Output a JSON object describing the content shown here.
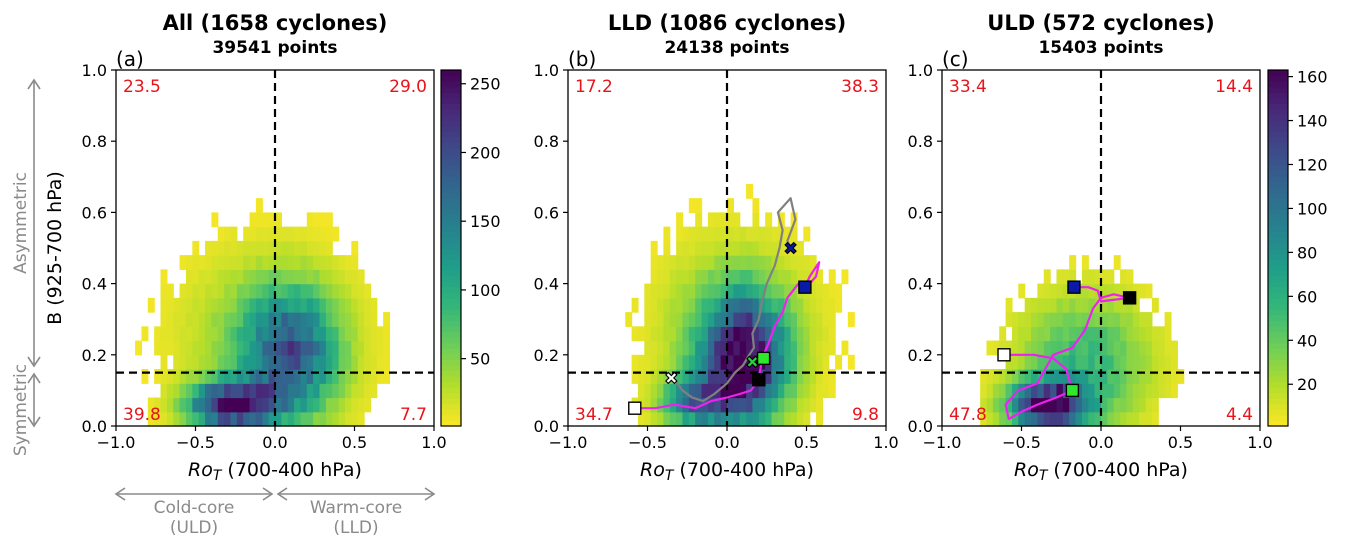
{
  "chart_data": [
    {
      "type": "heatmap",
      "panel_label": "(a)",
      "title": "All (1658 cyclones)",
      "subtitle": "39541 points",
      "xlabel_symbol": "Ro",
      "xlabel_sub": "T",
      "xlabel_rest": " (700-400 hPa)",
      "ylabel": "B (925-700 hPa)",
      "xlim": [
        -1.0,
        1.0
      ],
      "ylim": [
        0.0,
        1.0
      ],
      "xticks": [
        "−1.0",
        "−0.5",
        "0.0",
        "0.5",
        "1.0"
      ],
      "yticks": [
        "0.0",
        "0.2",
        "0.4",
        "0.6",
        "0.8",
        "1.0"
      ],
      "colormap": "viridis_r",
      "colorbar": {
        "ticks": [
          "50",
          "100",
          "150",
          "200",
          "250"
        ],
        "tick_values": [
          50,
          100,
          150,
          200,
          250
        ],
        "range": [
          1,
          260
        ]
      },
      "quadrant_percent": {
        "top_left": "23.5",
        "top_right": "29.0",
        "bottom_left": "39.8",
        "bottom_right": "7.7"
      },
      "reference_lines": {
        "x": 0.0,
        "y": 0.15
      },
      "density_model": {
        "peak": 258,
        "components": [
          {
            "x": -0.27,
            "y": 0.06,
            "sx": 0.18,
            "sy": 0.045,
            "w": 1.0
          },
          {
            "x": 0.1,
            "y": 0.2,
            "sx": 0.2,
            "sy": 0.12,
            "w": 0.62
          },
          {
            "x": -0.05,
            "y": 0.25,
            "sx": 0.35,
            "sy": 0.16,
            "w": 0.2
          }
        ]
      },
      "tracks": []
    },
    {
      "type": "heatmap",
      "panel_label": "(b)",
      "title": "LLD (1086 cyclones)",
      "subtitle": "24138 points",
      "xlabel_symbol": "Ro",
      "xlabel_sub": "T",
      "xlabel_rest": " (700-400 hPa)",
      "ylabel": "",
      "xlim": [
        -1.0,
        1.0
      ],
      "ylim": [
        0.0,
        1.0
      ],
      "xticks": [
        "−1.0",
        "−0.5",
        "0.0",
        "0.5",
        "1.0"
      ],
      "yticks": [
        "0.0",
        "0.2",
        "0.4",
        "0.6",
        "0.8",
        "1.0"
      ],
      "colormap": "viridis_r",
      "colorbar": null,
      "quadrant_percent": {
        "top_left": "17.2",
        "top_right": "38.3",
        "bottom_left": "34.7",
        "bottom_right": "9.8"
      },
      "reference_lines": {
        "x": 0.0,
        "y": 0.15
      },
      "density_model": {
        "peak": 250,
        "components": [
          {
            "x": 0.1,
            "y": 0.18,
            "sx": 0.18,
            "sy": 0.12,
            "w": 1.0
          },
          {
            "x": -0.2,
            "y": 0.07,
            "sx": 0.15,
            "sy": 0.05,
            "w": 0.55
          },
          {
            "x": 0.05,
            "y": 0.28,
            "sx": 0.32,
            "sy": 0.16,
            "w": 0.22
          }
        ]
      },
      "tracks": [
        {
          "name": "gray track",
          "color": "#808080",
          "points": [
            [
              -0.33,
              0.13
            ],
            [
              -0.28,
              0.1
            ],
            [
              -0.22,
              0.08
            ],
            [
              -0.15,
              0.07
            ],
            [
              -0.08,
              0.09
            ],
            [
              0.0,
              0.12
            ],
            [
              0.05,
              0.15
            ],
            [
              0.1,
              0.17
            ],
            [
              0.14,
              0.2
            ],
            [
              0.17,
              0.22
            ],
            [
              0.16,
              0.26
            ],
            [
              0.2,
              0.3
            ],
            [
              0.22,
              0.35
            ],
            [
              0.25,
              0.4
            ],
            [
              0.3,
              0.45
            ],
            [
              0.33,
              0.5
            ],
            [
              0.35,
              0.55
            ],
            [
              0.32,
              0.6
            ],
            [
              0.4,
              0.64
            ],
            [
              0.43,
              0.58
            ],
            [
              0.38,
              0.52
            ],
            [
              0.4,
              0.5
            ]
          ],
          "start_marker": {
            "shape": "x",
            "x": -0.35,
            "y": 0.135,
            "fill": "#ffffff"
          },
          "mid_marker": {
            "shape": "x",
            "x": 0.16,
            "y": 0.18,
            "fill": "#2ecc40"
          },
          "end_marker": {
            "shape": "x",
            "x": 0.4,
            "y": 0.5,
            "fill": "#0a1aa6"
          }
        },
        {
          "name": "magenta track",
          "color": "#ee22ee",
          "points": [
            [
              -0.58,
              0.05
            ],
            [
              -0.45,
              0.05
            ],
            [
              -0.33,
              0.06
            ],
            [
              -0.2,
              0.05
            ],
            [
              -0.1,
              0.07
            ],
            [
              0.0,
              0.08
            ],
            [
              0.08,
              0.09
            ],
            [
              0.15,
              0.1
            ],
            [
              0.2,
              0.13
            ],
            [
              0.22,
              0.19
            ],
            [
              0.26,
              0.23
            ],
            [
              0.3,
              0.28
            ],
            [
              0.35,
              0.32
            ],
            [
              0.38,
              0.36
            ],
            [
              0.45,
              0.4
            ],
            [
              0.5,
              0.39
            ],
            [
              0.56,
              0.42
            ],
            [
              0.58,
              0.46
            ],
            [
              0.52,
              0.42
            ],
            [
              0.49,
              0.39
            ]
          ],
          "start_marker": {
            "shape": "square",
            "x": -0.58,
            "y": 0.05,
            "fill": "#ffffff"
          },
          "mid_marker": {
            "shape": "square",
            "x": 0.23,
            "y": 0.19,
            "fill": "#2ee82e"
          },
          "end_marker": {
            "shape": "square",
            "x": 0.49,
            "y": 0.39,
            "fill": "#0a1aa6"
          },
          "extra_marker": {
            "shape": "square",
            "x": 0.2,
            "y": 0.13,
            "fill": "#000000"
          }
        }
      ]
    },
    {
      "type": "heatmap",
      "panel_label": "(c)",
      "title": "ULD (572 cyclones)",
      "subtitle": "15403 points",
      "xlabel_symbol": "Ro",
      "xlabel_sub": "T",
      "xlabel_rest": " (700-400 hPa)",
      "ylabel": "",
      "xlim": [
        -1.0,
        1.0
      ],
      "ylim": [
        0.0,
        1.0
      ],
      "xticks": [
        "−1.0",
        "−0.5",
        "0.0",
        "0.5",
        "1.0"
      ],
      "yticks": [
        "0.0",
        "0.2",
        "0.4",
        "0.6",
        "0.8",
        "1.0"
      ],
      "colormap": "viridis_r",
      "colorbar": {
        "ticks": [
          "20",
          "40",
          "60",
          "80",
          "100",
          "120",
          "140",
          "160"
        ],
        "tick_values": [
          20,
          40,
          60,
          80,
          100,
          120,
          140,
          160
        ],
        "range": [
          1,
          163
        ]
      },
      "quadrant_percent": {
        "top_left": "33.4",
        "top_right": "14.4",
        "bottom_left": "47.8",
        "bottom_right": "4.4"
      },
      "reference_lines": {
        "x": 0.0,
        "y": 0.15
      },
      "density_model": {
        "peak": 160,
        "components": [
          {
            "x": -0.33,
            "y": 0.06,
            "sx": 0.17,
            "sy": 0.045,
            "w": 1.0
          },
          {
            "x": -0.1,
            "y": 0.18,
            "sx": 0.28,
            "sy": 0.13,
            "w": 0.35
          }
        ]
      },
      "tracks": [
        {
          "name": "magenta track",
          "color": "#ee22ee",
          "points": [
            [
              -0.61,
              0.2
            ],
            [
              -0.52,
              0.2
            ],
            [
              -0.42,
              0.2
            ],
            [
              -0.3,
              0.19
            ],
            [
              -0.22,
              0.16
            ],
            [
              -0.18,
              0.1
            ],
            [
              -0.28,
              0.08
            ],
            [
              -0.4,
              0.06
            ],
            [
              -0.5,
              0.04
            ],
            [
              -0.58,
              0.02
            ],
            [
              -0.6,
              0.06
            ],
            [
              -0.52,
              0.1
            ],
            [
              -0.4,
              0.12
            ],
            [
              -0.35,
              0.16
            ],
            [
              -0.3,
              0.2
            ],
            [
              -0.18,
              0.22
            ],
            [
              -0.1,
              0.27
            ],
            [
              -0.05,
              0.33
            ],
            [
              0.0,
              0.36
            ],
            [
              0.08,
              0.37
            ],
            [
              0.18,
              0.36
            ],
            [
              0.0,
              0.35
            ],
            [
              -0.02,
              0.38
            ],
            [
              -0.08,
              0.39
            ],
            [
              -0.17,
              0.39
            ]
          ],
          "start_marker": {
            "shape": "square",
            "x": -0.61,
            "y": 0.2,
            "fill": "#ffffff"
          },
          "mid_marker": {
            "shape": "square",
            "x": -0.18,
            "y": 0.1,
            "fill": "#2ee82e"
          },
          "end_marker": {
            "shape": "square",
            "x": -0.17,
            "y": 0.39,
            "fill": "#0a1aa6"
          },
          "extra_marker": {
            "shape": "square",
            "x": 0.18,
            "y": 0.36,
            "fill": "#000000"
          }
        }
      ]
    }
  ],
  "annotations": {
    "asymmetric": "Asymmetric",
    "symmetric": "Symmetric",
    "cold_core": "Cold-core",
    "cold_core_sub": "(ULD)",
    "warm_core": "Warm-core",
    "warm_core_sub": "(LLD)"
  }
}
